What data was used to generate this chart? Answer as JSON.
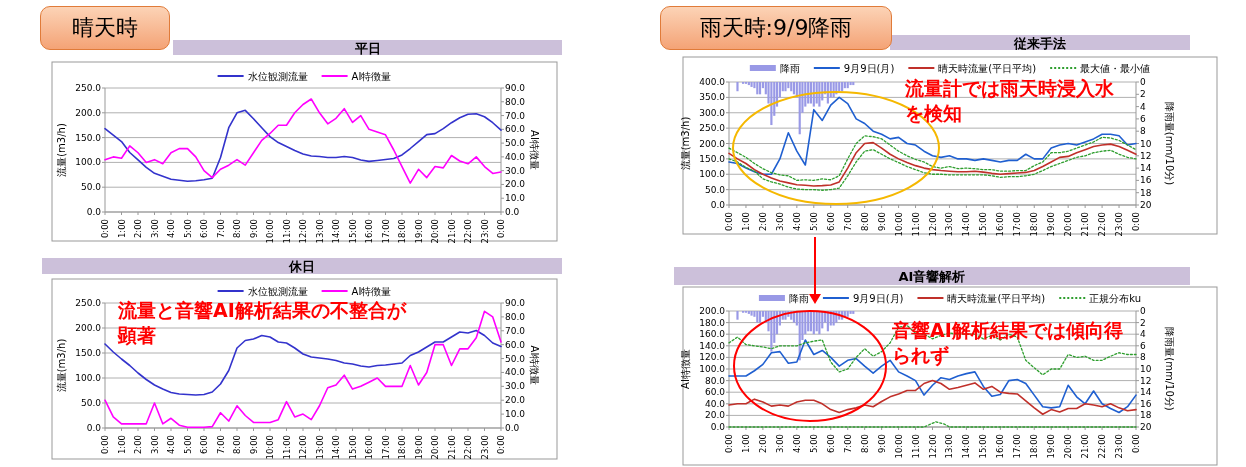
{
  "chart_data": [
    {
      "type": "line",
      "title": "平日",
      "ylabel": "流量(m3/h)",
      "y2label": "AI特徴量",
      "legend": "top",
      "grid": "y",
      "annotations": [
        "晴天時"
      ],
      "x": [
        0,
        0.5,
        1,
        1.5,
        2,
        2.5,
        3,
        3.5,
        4,
        4.5,
        5,
        5.5,
        6,
        6.5,
        7,
        7.5,
        8,
        8.5,
        9,
        9.5,
        10,
        10.5,
        11,
        11.5,
        12,
        12.5,
        13,
        13.5,
        14,
        14.5,
        15,
        15.5,
        16,
        16.5,
        17,
        17.5,
        18,
        18.5,
        19,
        19.5,
        20,
        20.5,
        21,
        21.5,
        22,
        22.5,
        23,
        23.5,
        24
      ],
      "xlim": [
        0,
        24
      ],
      "xticks": [
        {
          "value": 0,
          "label": "0:00"
        },
        {
          "value": 1,
          "label": "1:00"
        },
        {
          "value": 2,
          "label": "2:00"
        },
        {
          "value": 3,
          "label": "3:00"
        },
        {
          "value": 4,
          "label": "4:00"
        },
        {
          "value": 5,
          "label": "5:00"
        },
        {
          "value": 6,
          "label": "6:00"
        },
        {
          "value": 7,
          "label": "7:00"
        },
        {
          "value": 8,
          "label": "8:00"
        },
        {
          "value": 9,
          "label": "9:00"
        },
        {
          "value": 10,
          "label": "10:00"
        },
        {
          "value": 11,
          "label": "11:00"
        },
        {
          "value": 12,
          "label": "12:00"
        },
        {
          "value": 13,
          "label": "13:00"
        },
        {
          "value": 14,
          "label": "14:00"
        },
        {
          "value": 15,
          "label": "15:00"
        },
        {
          "value": 16,
          "label": "16:00"
        },
        {
          "value": 17,
          "label": "17:00"
        },
        {
          "value": 18,
          "label": "18:00"
        },
        {
          "value": 19,
          "label": "19:00"
        },
        {
          "value": 20,
          "label": "20:00"
        },
        {
          "value": 21,
          "label": "21:00"
        },
        {
          "value": 22,
          "label": "22:00"
        },
        {
          "value": 23,
          "label": "23:00"
        },
        {
          "value": 24,
          "label": "0:00"
        }
      ],
      "ylim": [
        0,
        250
      ],
      "yticks": [
        {
          "value": 0,
          "label": "0.0"
        },
        {
          "value": 50,
          "label": "50.0"
        },
        {
          "value": 100,
          "label": "100.0"
        },
        {
          "value": 150,
          "label": "150.0"
        },
        {
          "value": 200,
          "label": "200.0"
        },
        {
          "value": 250,
          "label": "250.0"
        }
      ],
      "y2lim": [
        0,
        90
      ],
      "y2ticks": [
        {
          "value": 0,
          "label": "0.0"
        },
        {
          "value": 10,
          "label": "10.0"
        },
        {
          "value": 20,
          "label": "20.0"
        },
        {
          "value": 30,
          "label": "30.0"
        },
        {
          "value": 40,
          "label": "40.0"
        },
        {
          "value": 50,
          "label": "50.0"
        },
        {
          "value": 60,
          "label": "60.0"
        },
        {
          "value": 70,
          "label": "70.0"
        },
        {
          "value": 80,
          "label": "80.0"
        },
        {
          "value": 90,
          "label": "90.0"
        }
      ],
      "series": [
        {
          "name": "水位観測流量",
          "color": "#3333cc",
          "values": [
            168,
            155,
            142,
            120,
            105,
            90,
            78,
            72,
            66,
            64,
            62,
            63,
            65,
            68,
            110,
            170,
            200,
            205,
            188,
            170,
            152,
            140,
            132,
            124,
            117,
            113,
            112,
            110,
            110,
            112,
            110,
            105,
            102,
            104,
            106,
            108,
            115,
            128,
            142,
            156,
            158,
            168,
            180,
            190,
            197,
            198,
            192,
            180,
            165
          ]
        },
        {
          "name": "AI特徴量",
          "color": "#ff00ff",
          "axis": "y2",
          "values": [
            38,
            40,
            39,
            48,
            43,
            36,
            38,
            35,
            43,
            46,
            46,
            40,
            30,
            25,
            31,
            34,
            38,
            34,
            43,
            52,
            57,
            63,
            63,
            72,
            78,
            82,
            72,
            64,
            68,
            75,
            65,
            70,
            60,
            58,
            56,
            45,
            33,
            21,
            31,
            25,
            33,
            32,
            41,
            37,
            35,
            40,
            33,
            28,
            29
          ]
        }
      ]
    },
    {
      "type": "line",
      "title": "休日",
      "ylabel": "流量(m3/h)",
      "y2label": "AI特徴量",
      "legend": "top",
      "grid": "y",
      "annotations": [
        "流量と音響AI解析結果の不整合が顕著"
      ],
      "x": [
        0,
        0.5,
        1,
        1.5,
        2,
        2.5,
        3,
        3.5,
        4,
        4.5,
        5,
        5.5,
        6,
        6.5,
        7,
        7.5,
        8,
        8.5,
        9,
        9.5,
        10,
        10.5,
        11,
        11.5,
        12,
        12.5,
        13,
        13.5,
        14,
        14.5,
        15,
        15.5,
        16,
        16.5,
        17,
        17.5,
        18,
        18.5,
        19,
        19.5,
        20,
        20.5,
        21,
        21.5,
        22,
        22.5,
        23,
        23.5,
        24
      ],
      "xlim": [
        0,
        24
      ],
      "xticks": [
        {
          "value": 0,
          "label": "0:00"
        },
        {
          "value": 1,
          "label": "1:00"
        },
        {
          "value": 2,
          "label": "2:00"
        },
        {
          "value": 3,
          "label": "3:00"
        },
        {
          "value": 4,
          "label": "4:00"
        },
        {
          "value": 5,
          "label": "5:00"
        },
        {
          "value": 6,
          "label": "6:00"
        },
        {
          "value": 7,
          "label": "7:00"
        },
        {
          "value": 8,
          "label": "8:00"
        },
        {
          "value": 9,
          "label": "9:00"
        },
        {
          "value": 10,
          "label": "10:00"
        },
        {
          "value": 11,
          "label": "11:00"
        },
        {
          "value": 12,
          "label": "12:00"
        },
        {
          "value": 13,
          "label": "13:00"
        },
        {
          "value": 14,
          "label": "14:00"
        },
        {
          "value": 15,
          "label": "15:00"
        },
        {
          "value": 16,
          "label": "16:00"
        },
        {
          "value": 17,
          "label": "17:00"
        },
        {
          "value": 18,
          "label": "18:00"
        },
        {
          "value": 19,
          "label": "19:00"
        },
        {
          "value": 20,
          "label": "20:00"
        },
        {
          "value": 21,
          "label": "21:00"
        },
        {
          "value": 22,
          "label": "22:00"
        },
        {
          "value": 23,
          "label": "23:00"
        },
        {
          "value": 24,
          "label": "0:00"
        }
      ],
      "ylim": [
        0,
        250
      ],
      "yticks": [
        {
          "value": 0,
          "label": "0.0"
        },
        {
          "value": 50,
          "label": "50.0"
        },
        {
          "value": 100,
          "label": "100.0"
        },
        {
          "value": 150,
          "label": "150.0"
        },
        {
          "value": 200,
          "label": "200.0"
        },
        {
          "value": 250,
          "label": "250.0"
        }
      ],
      "y2lim": [
        0,
        90
      ],
      "y2ticks": [
        {
          "value": 0,
          "label": "0.0"
        },
        {
          "value": 10,
          "label": "10.0"
        },
        {
          "value": 20,
          "label": "20.0"
        },
        {
          "value": 30,
          "label": "30.0"
        },
        {
          "value": 40,
          "label": "40.0"
        },
        {
          "value": 50,
          "label": "50.0"
        },
        {
          "value": 60,
          "label": "60.0"
        },
        {
          "value": 70,
          "label": "70.0"
        },
        {
          "value": 80,
          "label": "80.0"
        },
        {
          "value": 90,
          "label": "90.0"
        }
      ],
      "series": [
        {
          "name": "水位観測流量",
          "color": "#3333cc",
          "values": [
            168,
            152,
            138,
            125,
            110,
            97,
            86,
            78,
            71,
            68,
            67,
            66,
            67,
            72,
            88,
            115,
            160,
            175,
            178,
            185,
            182,
            172,
            170,
            160,
            148,
            142,
            140,
            138,
            135,
            130,
            128,
            124,
            122,
            125,
            126,
            128,
            130,
            145,
            152,
            162,
            172,
            172,
            182,
            192,
            190,
            195,
            185,
            170,
            163
          ]
        },
        {
          "name": "AI特徴量",
          "color": "#ff00ff",
          "axis": "y2",
          "values": [
            20,
            8,
            3,
            3,
            3,
            3,
            18,
            3,
            7,
            2,
            0.5,
            0.5,
            0.5,
            1,
            11,
            5,
            16,
            9,
            4,
            4,
            4,
            6,
            19,
            8,
            10,
            6,
            16,
            29,
            31,
            38,
            28,
            30,
            33,
            36,
            30,
            30,
            30,
            45,
            31,
            40,
            60,
            60,
            45,
            57,
            57,
            65,
            84,
            80,
            62
          ]
        }
      ]
    },
    {
      "type": "line",
      "title": "従来手法",
      "ylabel": "流量(m3/h)",
      "y2label": "降雨量(mm/10分)",
      "legend": "top",
      "grid": "y",
      "annotations": [
        "雨天時:9/9降雨",
        "流量計では雨天時浸入水を検知"
      ],
      "x": [
        0,
        0.5,
        1,
        1.5,
        2,
        2.5,
        3,
        3.5,
        4,
        4.5,
        5,
        5.5,
        6,
        6.5,
        7,
        7.5,
        8,
        8.5,
        9,
        9.5,
        10,
        10.5,
        11,
        11.5,
        12,
        12.5,
        13,
        13.5,
        14,
        14.5,
        15,
        15.5,
        16,
        16.5,
        17,
        17.5,
        18,
        18.5,
        19,
        19.5,
        20,
        20.5,
        21,
        21.5,
        22,
        22.5,
        23,
        23.5,
        24
      ],
      "xlim": [
        0,
        24
      ],
      "xticks": [
        {
          "value": 0,
          "label": "0:00"
        },
        {
          "value": 1,
          "label": "1:00"
        },
        {
          "value": 2,
          "label": "2:00"
        },
        {
          "value": 3,
          "label": "3:00"
        },
        {
          "value": 4,
          "label": "4:00"
        },
        {
          "value": 5,
          "label": "5:00"
        },
        {
          "value": 6,
          "label": "6:00"
        },
        {
          "value": 7,
          "label": "7:00"
        },
        {
          "value": 8,
          "label": "8:00"
        },
        {
          "value": 9,
          "label": "9:00"
        },
        {
          "value": 10,
          "label": "10:00"
        },
        {
          "value": 11,
          "label": "11:00"
        },
        {
          "value": 12,
          "label": "12:00"
        },
        {
          "value": 13,
          "label": "13:00"
        },
        {
          "value": 14,
          "label": "14:00"
        },
        {
          "value": 15,
          "label": "15:00"
        },
        {
          "value": 16,
          "label": "16:00"
        },
        {
          "value": 17,
          "label": "17:00"
        },
        {
          "value": 18,
          "label": "18:00"
        },
        {
          "value": 19,
          "label": "19:00"
        },
        {
          "value": 20,
          "label": "20:00"
        },
        {
          "value": 21,
          "label": "21:00"
        },
        {
          "value": 22,
          "label": "22:00"
        },
        {
          "value": 23,
          "label": "23:00"
        },
        {
          "value": 24,
          "label": "0:00"
        }
      ],
      "ylim": [
        0,
        400
      ],
      "yticks": [
        {
          "value": 0,
          "label": "0.0"
        },
        {
          "value": 50,
          "label": "50.0"
        },
        {
          "value": 100,
          "label": "100.0"
        },
        {
          "value": 150,
          "label": "150.0"
        },
        {
          "value": 200,
          "label": "200.0"
        },
        {
          "value": 250,
          "label": "250.0"
        },
        {
          "value": 300,
          "label": "300.0"
        },
        {
          "value": 350,
          "label": "350.0"
        },
        {
          "value": 400,
          "label": "400.0"
        }
      ],
      "y2lim": [
        20,
        0
      ],
      "y2ticks": [
        0,
        2,
        4,
        6,
        8,
        10,
        12,
        14,
        16,
        18,
        20
      ],
      "series": [
        {
          "name": "降雨",
          "type": "bar",
          "axis": "y2",
          "color": "#9999e6",
          "x": [
            0.5,
            0.67,
            0.83,
            1,
            1.17,
            1.33,
            1.5,
            1.67,
            1.83,
            2,
            2.17,
            2.33,
            2.5,
            2.67,
            2.83,
            3,
            3.17,
            3.33,
            3.5,
            3.67,
            3.83,
            4,
            4.17,
            4.33,
            4.5,
            4.67,
            4.83,
            5,
            5.17,
            5.33,
            5.5,
            5.67,
            5.83,
            6,
            6.17,
            6.33,
            6.5,
            6.67,
            6.83,
            7,
            7.17,
            7.33
          ],
          "values": [
            1.5,
            0,
            0.3,
            0.3,
            0.5,
            0.8,
            1.0,
            2.0,
            2.0,
            1.0,
            2.0,
            3.5,
            7.0,
            5.5,
            4.0,
            2.5,
            1.5,
            1.5,
            1.0,
            1.5,
            2.0,
            2.5,
            8.5,
            5.0,
            4.0,
            3.5,
            3.5,
            4.0,
            3.5,
            4.0,
            3.0,
            2.0,
            3.5,
            2.5,
            2.5,
            2.0,
            1.5,
            1.5,
            1.0,
            1.0,
            0.5,
            0.5
          ]
        },
        {
          "name": "9月9日(月)",
          "color": "#1f5fd0",
          "values": [
            140,
            135,
            120,
            108,
            100,
            100,
            150,
            235,
            175,
            130,
            310,
            275,
            325,
            350,
            330,
            280,
            265,
            240,
            230,
            215,
            220,
            200,
            195,
            175,
            160,
            155,
            160,
            150,
            150,
            145,
            150,
            145,
            140,
            145,
            145,
            165,
            150,
            150,
            185,
            195,
            200,
            195,
            205,
            215,
            230,
            230,
            225,
            195,
            200
          ]
        },
        {
          "name": "晴天時流量(平日平均)",
          "color": "#c0302a",
          "values": [
            168,
            150,
            135,
            115,
            100,
            88,
            78,
            72,
            66,
            64,
            62,
            63,
            65,
            75,
            120,
            170,
            200,
            203,
            185,
            165,
            150,
            138,
            128,
            120,
            115,
            112,
            110,
            108,
            108,
            110,
            107,
            103,
            100,
            102,
            104,
            106,
            112,
            125,
            140,
            155,
            158,
            170,
            180,
            190,
            195,
            198,
            190,
            178,
            165
          ]
        },
        {
          "name": "最大値・最小値",
          "color": "#2e9e2e",
          "line_style": "dotted",
          "values": [
            185,
            170,
            155,
            135,
            118,
            105,
            98,
            95,
            80,
            82,
            80,
            85,
            82,
            95,
            150,
            200,
            225,
            222,
            215,
            195,
            175,
            160,
            148,
            140,
            125,
            120,
            125,
            118,
            120,
            118,
            115,
            115,
            110,
            110,
            112,
            112,
            128,
            140,
            170,
            170,
            175,
            185,
            195,
            205,
            220,
            218,
            210,
            195,
            180
          ]
        },
        {
          "color": "#2e9e2e",
          "line_style": "dotted",
          "values": [
            150,
            140,
            122,
            110,
            85,
            75,
            68,
            58,
            52,
            50,
            50,
            48,
            50,
            55,
            95,
            140,
            175,
            180,
            165,
            150,
            138,
            125,
            115,
            105,
            100,
            100,
            98,
            98,
            98,
            98,
            98,
            95,
            90,
            92,
            92,
            95,
            100,
            112,
            125,
            135,
            145,
            155,
            160,
            170,
            175,
            178,
            165,
            155,
            150
          ]
        }
      ]
    },
    {
      "type": "line",
      "title": "AI音響解析",
      "ylabel": "AI特徴量",
      "y2label": "降雨量(mm/10分)",
      "legend": "top",
      "grid": "y",
      "annotations": [
        "音響AI解析結果では傾向得られず"
      ],
      "x": [
        0,
        0.5,
        1,
        1.5,
        2,
        2.5,
        3,
        3.5,
        4,
        4.5,
        5,
        5.5,
        6,
        6.5,
        7,
        7.5,
        8,
        8.5,
        9,
        9.5,
        10,
        10.5,
        11,
        11.5,
        12,
        12.5,
        13,
        13.5,
        14,
        14.5,
        15,
        15.5,
        16,
        16.5,
        17,
        17.5,
        18,
        18.5,
        19,
        19.5,
        20,
        20.5,
        21,
        21.5,
        22,
        22.5,
        23,
        23.5,
        24
      ],
      "xlim": [
        0,
        24
      ],
      "xticks": [
        {
          "value": 0,
          "label": "0:00"
        },
        {
          "value": 1,
          "label": "1:00"
        },
        {
          "value": 2,
          "label": "2:00"
        },
        {
          "value": 3,
          "label": "3:00"
        },
        {
          "value": 4,
          "label": "4:00"
        },
        {
          "value": 5,
          "label": "5:00"
        },
        {
          "value": 6,
          "label": "6:00"
        },
        {
          "value": 7,
          "label": "7:00"
        },
        {
          "value": 8,
          "label": "8:00"
        },
        {
          "value": 9,
          "label": "9:00"
        },
        {
          "value": 10,
          "label": "10:00"
        },
        {
          "value": 11,
          "label": "11:00"
        },
        {
          "value": 12,
          "label": "12:00"
        },
        {
          "value": 13,
          "label": "13:00"
        },
        {
          "value": 14,
          "label": "14:00"
        },
        {
          "value": 15,
          "label": "15:00"
        },
        {
          "value": 16,
          "label": "16:00"
        },
        {
          "value": 17,
          "label": "17:00"
        },
        {
          "value": 18,
          "label": "18:00"
        },
        {
          "value": 19,
          "label": "19:00"
        },
        {
          "value": 20,
          "label": "20:00"
        },
        {
          "value": 21,
          "label": "21:00"
        },
        {
          "value": 22,
          "label": "22:00"
        },
        {
          "value": 23,
          "label": "23:00"
        },
        {
          "value": 24,
          "label": "0:00"
        }
      ],
      "ylim": [
        0,
        200
      ],
      "yticks": [
        {
          "value": 0,
          "label": "0.0"
        },
        {
          "value": 20,
          "label": "20.0"
        },
        {
          "value": 40,
          "label": "40.0"
        },
        {
          "value": 60,
          "label": "60.0"
        },
        {
          "value": 80,
          "label": "80.0"
        },
        {
          "value": 100,
          "label": "100.0"
        },
        {
          "value": 120,
          "label": "120.0"
        },
        {
          "value": 140,
          "label": "140.0"
        },
        {
          "value": 160,
          "label": "160.0"
        },
        {
          "value": 180,
          "label": "180.0"
        },
        {
          "value": 200,
          "label": "200.0"
        }
      ],
      "y2lim": [
        20,
        0
      ],
      "y2ticks": [
        0,
        2,
        4,
        6,
        8,
        10,
        12,
        14,
        16,
        18,
        20
      ],
      "series": [
        {
          "name": "降雨",
          "type": "bar",
          "axis": "y2",
          "color": "#9999e6",
          "x": [
            0.5,
            0.67,
            0.83,
            1,
            1.17,
            1.33,
            1.5,
            1.67,
            1.83,
            2,
            2.17,
            2.33,
            2.5,
            2.67,
            2.83,
            3,
            3.17,
            3.33,
            3.5,
            3.67,
            3.83,
            4,
            4.17,
            4.33,
            4.5,
            4.67,
            4.83,
            5,
            5.17,
            5.33,
            5.5,
            5.67,
            5.83,
            6,
            6.17,
            6.33,
            6.5,
            6.67,
            6.83,
            7,
            7.17,
            7.33
          ],
          "values": [
            1.5,
            0,
            0.3,
            0.3,
            0.5,
            0.8,
            1.0,
            2.0,
            2.0,
            1.0,
            2.0,
            3.5,
            7.0,
            5.5,
            4.0,
            2.5,
            1.5,
            1.5,
            1.0,
            1.5,
            2.0,
            2.5,
            8.5,
            5.0,
            4.0,
            3.5,
            3.5,
            4.0,
            3.5,
            4.0,
            3.0,
            2.0,
            3.5,
            2.5,
            2.5,
            2.0,
            1.5,
            1.5,
            1.0,
            1.0,
            0.5,
            0.5
          ]
        },
        {
          "name": "9月9日(月)",
          "color": "#1f5fd0",
          "values": [
            88,
            88,
            88,
            97,
            108,
            128,
            130,
            110,
            112,
            150,
            125,
            132,
            120,
            105,
            115,
            118,
            105,
            93,
            105,
            115,
            95,
            88,
            80,
            55,
            72,
            85,
            82,
            88,
            92,
            95,
            70,
            53,
            56,
            80,
            82,
            75,
            55,
            35,
            33,
            35,
            72,
            52,
            40,
            62,
            40,
            32,
            25,
            35,
            55
          ]
        },
        {
          "name": "晴天時流量(平日平均)",
          "color": "#c0302a",
          "values": [
            38,
            40,
            40,
            48,
            43,
            36,
            38,
            36,
            43,
            46,
            46,
            40,
            30,
            25,
            30,
            33,
            38,
            35,
            44,
            52,
            57,
            63,
            63,
            75,
            80,
            75,
            65,
            68,
            72,
            76,
            65,
            70,
            60,
            58,
            57,
            45,
            33,
            22,
            30,
            26,
            32,
            32,
            40,
            38,
            35,
            40,
            33,
            28,
            30
          ]
        },
        {
          "name": "正規分布ku",
          "color": "#2e9e2e",
          "line_style": "dotted",
          "values": [
            145,
            155,
            142,
            140,
            138,
            135,
            140,
            140,
            140,
            145,
            148,
            150,
            112,
            95,
            100,
            120,
            135,
            122,
            130,
            145,
            172,
            175,
            162,
            160,
            152,
            158,
            162,
            160,
            160,
            160,
            152,
            158,
            150,
            160,
            155,
            115,
            102,
            90,
            100,
            100,
            125,
            120,
            122,
            115,
            115,
            122,
            128,
            125,
            125
          ]
        },
        {
          "color": "#2e9e2e",
          "line_style": "dotted",
          "x": [
            0,
            11.5,
            12.2,
            12.7,
            13,
            24
          ],
          "values": [
            0,
            0,
            9,
            5,
            0,
            0
          ]
        }
      ]
    }
  ]
}
